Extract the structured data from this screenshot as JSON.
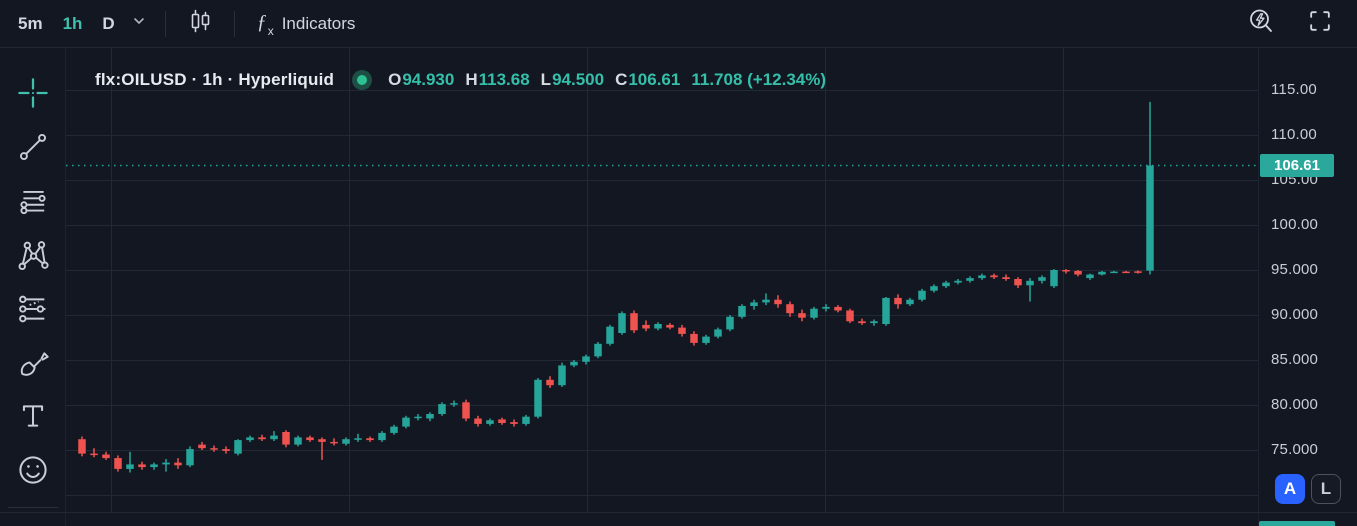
{
  "toolbar": {
    "interval_5m": "5m",
    "interval_1h": "1h",
    "interval_d": "D",
    "fx_f": "ƒ",
    "fx_x": "x",
    "indicators": "Indicators"
  },
  "sidebar": {
    "tools": [
      "crosshair",
      "trend-line",
      "fib-retracement",
      "xabcd-pattern",
      "forecast",
      "brush",
      "text",
      "emoji"
    ]
  },
  "legend": {
    "title": "flx:OILUSD · 1h · Hyperliquid",
    "o_label": "O",
    "o_value": "94.930",
    "h_label": "H",
    "h_value": "113.68",
    "l_label": "L",
    "l_value": "94.500",
    "c_label": "C",
    "c_value": "106.61",
    "change": "11.708 (+12.34%)"
  },
  "price_axis": {
    "labels": [
      {
        "price": 115,
        "text": "115.00"
      },
      {
        "price": 110,
        "text": "110.00"
      },
      {
        "price": 105,
        "text": "105.00"
      },
      {
        "price": 100,
        "text": "100.00"
      },
      {
        "price": 95,
        "text": "95.000"
      },
      {
        "price": 90,
        "text": "90.000"
      },
      {
        "price": 85,
        "text": "85.000"
      },
      {
        "price": 80,
        "text": "80.000"
      },
      {
        "price": 75,
        "text": "75.000"
      }
    ],
    "current_label": "106.61",
    "btn_a": "A",
    "btn_l": "L"
  },
  "colors": {
    "up": "#26a69a",
    "down": "#ef5350",
    "accent_teal": "#41c0ae",
    "badge": "#2ba89c",
    "btn_blue": "#2962ff",
    "grid": "#212836",
    "background": "#131722"
  },
  "chart_data": {
    "type": "candlestick",
    "symbol": "flx:OILUSD",
    "interval": "1h",
    "exchange": "Hyperliquid",
    "last_bar": {
      "open": 94.93,
      "high": 113.68,
      "low": 94.5,
      "close": 106.61,
      "change": 11.708,
      "change_pct": 12.34
    },
    "current_price": 106.61,
    "ylim": [
      70,
      116
    ],
    "h_gridline_prices": [
      70,
      75,
      80,
      85,
      90,
      95,
      100,
      105,
      110,
      115
    ],
    "candles": [
      [
        76.2,
        76.5,
        74.3,
        74.6
      ],
      [
        74.6,
        75.2,
        74.2,
        74.5
      ],
      [
        74.5,
        74.8,
        73.9,
        74.1
      ],
      [
        74.1,
        74.4,
        72.6,
        72.9
      ],
      [
        72.9,
        74.8,
        72.5,
        73.4
      ],
      [
        73.4,
        73.7,
        72.8,
        73.1
      ],
      [
        73.1,
        73.6,
        72.8,
        73.4
      ],
      [
        73.4,
        74.0,
        72.6,
        73.6
      ],
      [
        73.6,
        74.1,
        72.9,
        73.3
      ],
      [
        73.3,
        75.4,
        73.1,
        75.1
      ],
      [
        75.6,
        75.9,
        75.0,
        75.2
      ],
      [
        75.2,
        75.5,
        74.8,
        75.1
      ],
      [
        75.1,
        75.4,
        74.6,
        74.9
      ],
      [
        74.6,
        76.2,
        74.4,
        76.1
      ],
      [
        76.1,
        76.6,
        75.9,
        76.4
      ],
      [
        76.4,
        76.7,
        76.0,
        76.2
      ],
      [
        76.2,
        77.1,
        76.0,
        76.6
      ],
      [
        77.0,
        77.2,
        75.3,
        75.6
      ],
      [
        75.6,
        76.6,
        75.4,
        76.4
      ],
      [
        76.4,
        76.6,
        75.9,
        76.1
      ],
      [
        76.2,
        76.4,
        73.9,
        75.9
      ],
      [
        75.9,
        76.3,
        75.5,
        75.8
      ],
      [
        75.7,
        76.4,
        75.5,
        76.2
      ],
      [
        76.2,
        76.8,
        75.9,
        76.3
      ],
      [
        76.3,
        76.5,
        75.9,
        76.1
      ],
      [
        76.1,
        77.1,
        75.9,
        76.9
      ],
      [
        76.9,
        77.8,
        76.7,
        77.6
      ],
      [
        77.6,
        78.8,
        77.4,
        78.6
      ],
      [
        78.6,
        79.0,
        78.3,
        78.7
      ],
      [
        78.5,
        79.2,
        78.2,
        79.0
      ],
      [
        79.0,
        80.3,
        78.8,
        80.1
      ],
      [
        80.1,
        80.5,
        79.8,
        80.2
      ],
      [
        80.3,
        80.6,
        78.2,
        78.5
      ],
      [
        78.5,
        78.8,
        77.6,
        77.9
      ],
      [
        77.9,
        78.5,
        77.7,
        78.3
      ],
      [
        78.4,
        78.6,
        77.8,
        78.0
      ],
      [
        78.1,
        78.4,
        77.6,
        77.9
      ],
      [
        77.9,
        78.9,
        77.7,
        78.7
      ],
      [
        78.7,
        83.0,
        78.5,
        82.8
      ],
      [
        82.8,
        83.2,
        81.9,
        82.2
      ],
      [
        82.2,
        84.7,
        82.0,
        84.4
      ],
      [
        84.4,
        85.0,
        84.2,
        84.8
      ],
      [
        84.8,
        85.6,
        84.5,
        85.4
      ],
      [
        85.4,
        87.0,
        85.2,
        86.8
      ],
      [
        86.8,
        88.9,
        86.6,
        88.7
      ],
      [
        88.0,
        90.4,
        87.8,
        90.2
      ],
      [
        90.2,
        90.5,
        88.0,
        88.3
      ],
      [
        88.9,
        89.4,
        88.2,
        88.5
      ],
      [
        88.5,
        89.2,
        88.3,
        89.0
      ],
      [
        88.9,
        89.1,
        88.4,
        88.6
      ],
      [
        88.6,
        88.9,
        87.6,
        87.9
      ],
      [
        87.9,
        88.2,
        86.6,
        86.9
      ],
      [
        86.9,
        87.8,
        86.7,
        87.6
      ],
      [
        87.6,
        88.6,
        87.4,
        88.4
      ],
      [
        88.4,
        90.0,
        88.2,
        89.8
      ],
      [
        89.8,
        91.2,
        89.6,
        91.0
      ],
      [
        91.0,
        91.7,
        90.6,
        91.4
      ],
      [
        91.4,
        92.4,
        91.1,
        91.7
      ],
      [
        91.7,
        92.2,
        90.8,
        91.2
      ],
      [
        91.2,
        91.5,
        89.8,
        90.2
      ],
      [
        90.2,
        90.6,
        89.3,
        89.7
      ],
      [
        89.7,
        90.9,
        89.5,
        90.7
      ],
      [
        90.7,
        91.2,
        90.4,
        90.9
      ],
      [
        90.9,
        91.1,
        90.3,
        90.5
      ],
      [
        90.5,
        90.7,
        89.1,
        89.3
      ],
      [
        89.3,
        89.6,
        88.9,
        89.1
      ],
      [
        89.1,
        89.5,
        88.8,
        89.3
      ],
      [
        89.0,
        92.0,
        88.8,
        91.9
      ],
      [
        91.9,
        92.3,
        90.7,
        91.2
      ],
      [
        91.2,
        91.9,
        91.0,
        91.7
      ],
      [
        91.7,
        92.9,
        91.5,
        92.7
      ],
      [
        92.7,
        93.4,
        92.5,
        93.2
      ],
      [
        93.2,
        93.8,
        93.0,
        93.6
      ],
      [
        93.6,
        94.0,
        93.4,
        93.8
      ],
      [
        93.8,
        94.3,
        93.6,
        94.1
      ],
      [
        94.1,
        94.6,
        93.9,
        94.4
      ],
      [
        94.4,
        94.6,
        94.0,
        94.2
      ],
      [
        94.2,
        94.5,
        93.8,
        94.0
      ],
      [
        94.0,
        94.2,
        93.0,
        93.3
      ],
      [
        93.3,
        94.1,
        91.5,
        93.8
      ],
      [
        93.8,
        94.4,
        93.5,
        94.2
      ],
      [
        93.2,
        95.1,
        93.0,
        95.0
      ],
      [
        95.0,
        95.1,
        94.6,
        94.9
      ],
      [
        94.9,
        95.0,
        94.3,
        94.5
      ],
      [
        94.1,
        94.6,
        93.9,
        94.5
      ],
      [
        94.5,
        94.9,
        94.4,
        94.8
      ],
      [
        94.8,
        94.9,
        94.7,
        94.82
      ],
      [
        94.82,
        94.9,
        94.68,
        94.78
      ],
      [
        94.85,
        94.95,
        94.6,
        94.75
      ],
      [
        94.93,
        113.68,
        94.5,
        106.61
      ]
    ]
  }
}
